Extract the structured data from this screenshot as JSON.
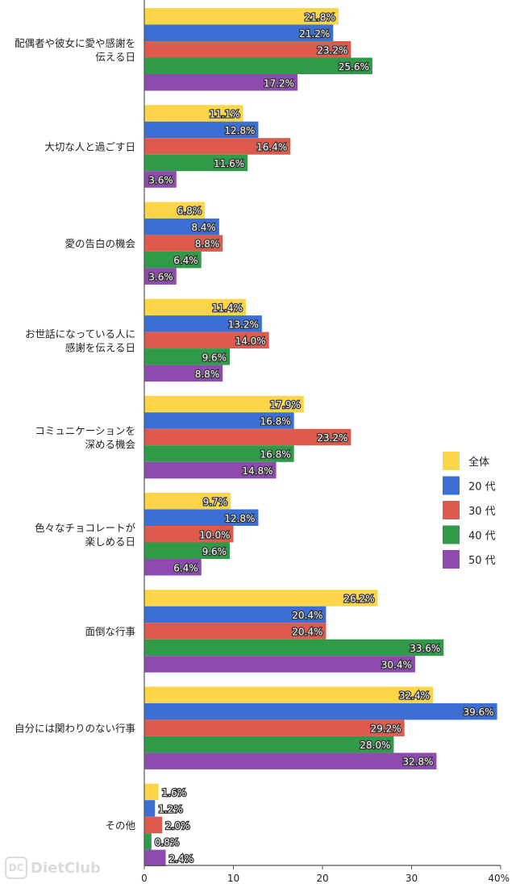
{
  "chart_data": {
    "type": "bar",
    "orientation": "horizontal",
    "categories": [
      [
        "配偶者や彼女に愛や感謝を",
        "伝える日"
      ],
      [
        "大切な人と過ごす日"
      ],
      [
        "愛の告白の機会"
      ],
      [
        "お世話になっている人に",
        "感謝を伝える日"
      ],
      [
        "コミュニケーションを",
        "深める機会"
      ],
      [
        "色々なチョコレートが",
        "楽しめる日"
      ],
      [
        "面倒な行事"
      ],
      [
        "自分には関わりのない行事"
      ],
      [
        "その他"
      ]
    ],
    "series": [
      {
        "name": "全体",
        "color": "#fcd648",
        "values": [
          21.8,
          11.1,
          6.8,
          11.4,
          17.9,
          9.7,
          26.2,
          32.4,
          1.6
        ]
      },
      {
        "name": "20代",
        "color": "#3c6fd6",
        "values": [
          21.2,
          12.8,
          8.4,
          13.2,
          16.8,
          12.8,
          20.4,
          39.6,
          1.2
        ]
      },
      {
        "name": "30代",
        "color": "#dd5a4c",
        "values": [
          23.2,
          16.4,
          8.8,
          14.0,
          23.2,
          10.0,
          20.4,
          29.2,
          2.0
        ]
      },
      {
        "name": "40代",
        "color": "#2f9a48",
        "values": [
          25.6,
          11.6,
          6.4,
          9.6,
          16.8,
          9.6,
          33.6,
          28.0,
          0.8
        ]
      },
      {
        "name": "50代",
        "color": "#8f4ab0",
        "values": [
          17.2,
          3.6,
          3.6,
          8.8,
          14.8,
          6.4,
          30.4,
          32.8,
          2.4
        ]
      }
    ],
    "value_labels": [
      [
        "21.8%",
        "11.1%",
        "6.8%",
        "11.4%",
        "17.9%",
        "9.7%",
        "26.2%",
        "32.4%",
        "1.6%"
      ],
      [
        "21.2%",
        "12.8%",
        "8.4%",
        "13.2%",
        "16.8%",
        "12.8%",
        "20.4%",
        "39.6%",
        "1.2%"
      ],
      [
        "23.2%",
        "16.4%",
        "8.8%",
        "14.0%",
        "23.2%",
        "10.0%",
        "20.4%",
        "29.2%",
        "2.0%"
      ],
      [
        "25.6%",
        "11.6%",
        "6.4%",
        "9.6%",
        "16.8%",
        "9.6%",
        "33.6%",
        "28.0%",
        "0.8%"
      ],
      [
        "17.2%",
        "3.6%",
        "3.6%",
        "8.8%",
        "14.8%",
        "6.4%",
        "30.4%",
        "32.8%",
        "2.4%"
      ]
    ],
    "xlim": [
      0,
      40
    ],
    "xticks": [
      0,
      10,
      20,
      30,
      40
    ],
    "xtick_labels": [
      "0",
      "10",
      "20",
      "30",
      "40%"
    ],
    "grid": false,
    "legend_position": "right",
    "legend_labels": [
      "全体",
      "20 代",
      "30 代",
      "40 代",
      "50 代"
    ]
  },
  "watermark": {
    "text": "DietClub",
    "icon": "dc-logo-icon"
  }
}
